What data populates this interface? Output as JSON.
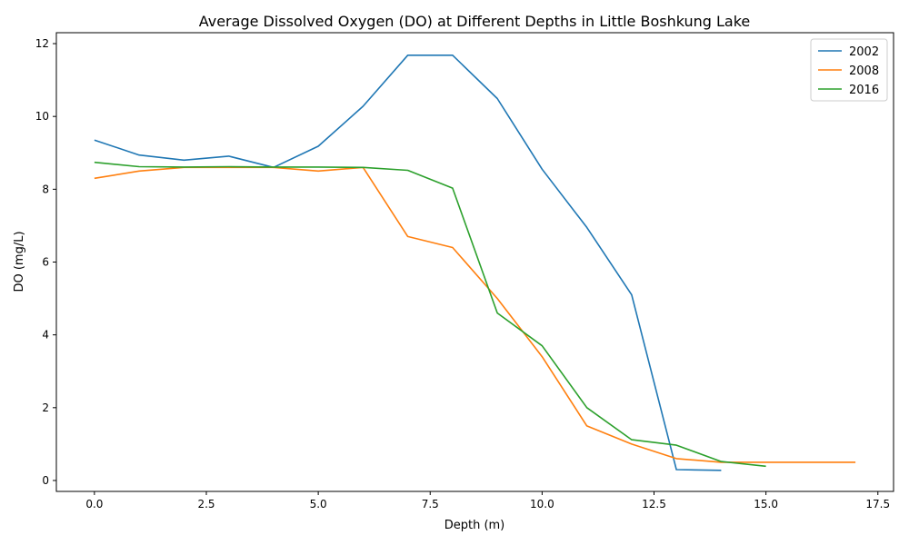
{
  "chart_data": {
    "type": "line",
    "title": "Average Dissolved Oxygen (DO) at Different Depths in Little Boshkung Lake",
    "xlabel": "Depth (m)",
    "ylabel": "DO (mg/L)",
    "xlim": [
      -0.85,
      17.85
    ],
    "ylim": [
      -0.3,
      12.3
    ],
    "xticks": [
      0.0,
      2.5,
      5.0,
      7.5,
      10.0,
      12.5,
      15.0,
      17.5
    ],
    "xtick_labels": [
      "0.0",
      "2.5",
      "5.0",
      "7.5",
      "10.0",
      "12.5",
      "15.0",
      "17.5"
    ],
    "yticks": [
      0,
      2,
      4,
      6,
      8,
      10,
      12
    ],
    "ytick_labels": [
      "0",
      "2",
      "4",
      "6",
      "8",
      "10",
      "12"
    ],
    "grid": false,
    "legend_position": "top-right",
    "series": [
      {
        "name": "2002",
        "color": "#1f77b4",
        "x": [
          0,
          1,
          2,
          3,
          4,
          5,
          6,
          7,
          8,
          9,
          10,
          11,
          12,
          13,
          14
        ],
        "y": [
          9.35,
          8.94,
          8.8,
          8.91,
          8.6,
          9.18,
          10.28,
          11.68,
          11.68,
          10.49,
          8.55,
          6.95,
          5.1,
          0.3,
          0.28
        ]
      },
      {
        "name": "2008",
        "color": "#ff7f0e",
        "x": [
          0,
          1,
          2,
          3,
          4,
          5,
          6,
          7,
          8,
          9,
          10,
          11,
          12,
          13,
          14,
          15,
          16,
          17
        ],
        "y": [
          8.3,
          8.5,
          8.6,
          8.6,
          8.6,
          8.5,
          8.6,
          6.7,
          6.4,
          5.0,
          3.4,
          1.5,
          1.0,
          0.6,
          0.5,
          0.5,
          0.5,
          0.5
        ]
      },
      {
        "name": "2016",
        "color": "#2ca02c",
        "x": [
          0,
          1,
          2,
          3,
          4,
          5,
          6,
          7,
          8,
          9,
          10,
          11,
          12,
          13,
          14,
          15
        ],
        "y": [
          8.74,
          8.62,
          8.61,
          8.62,
          8.61,
          8.61,
          8.6,
          8.52,
          8.03,
          4.6,
          3.7,
          2.0,
          1.12,
          0.97,
          0.52,
          0.39
        ]
      }
    ]
  }
}
